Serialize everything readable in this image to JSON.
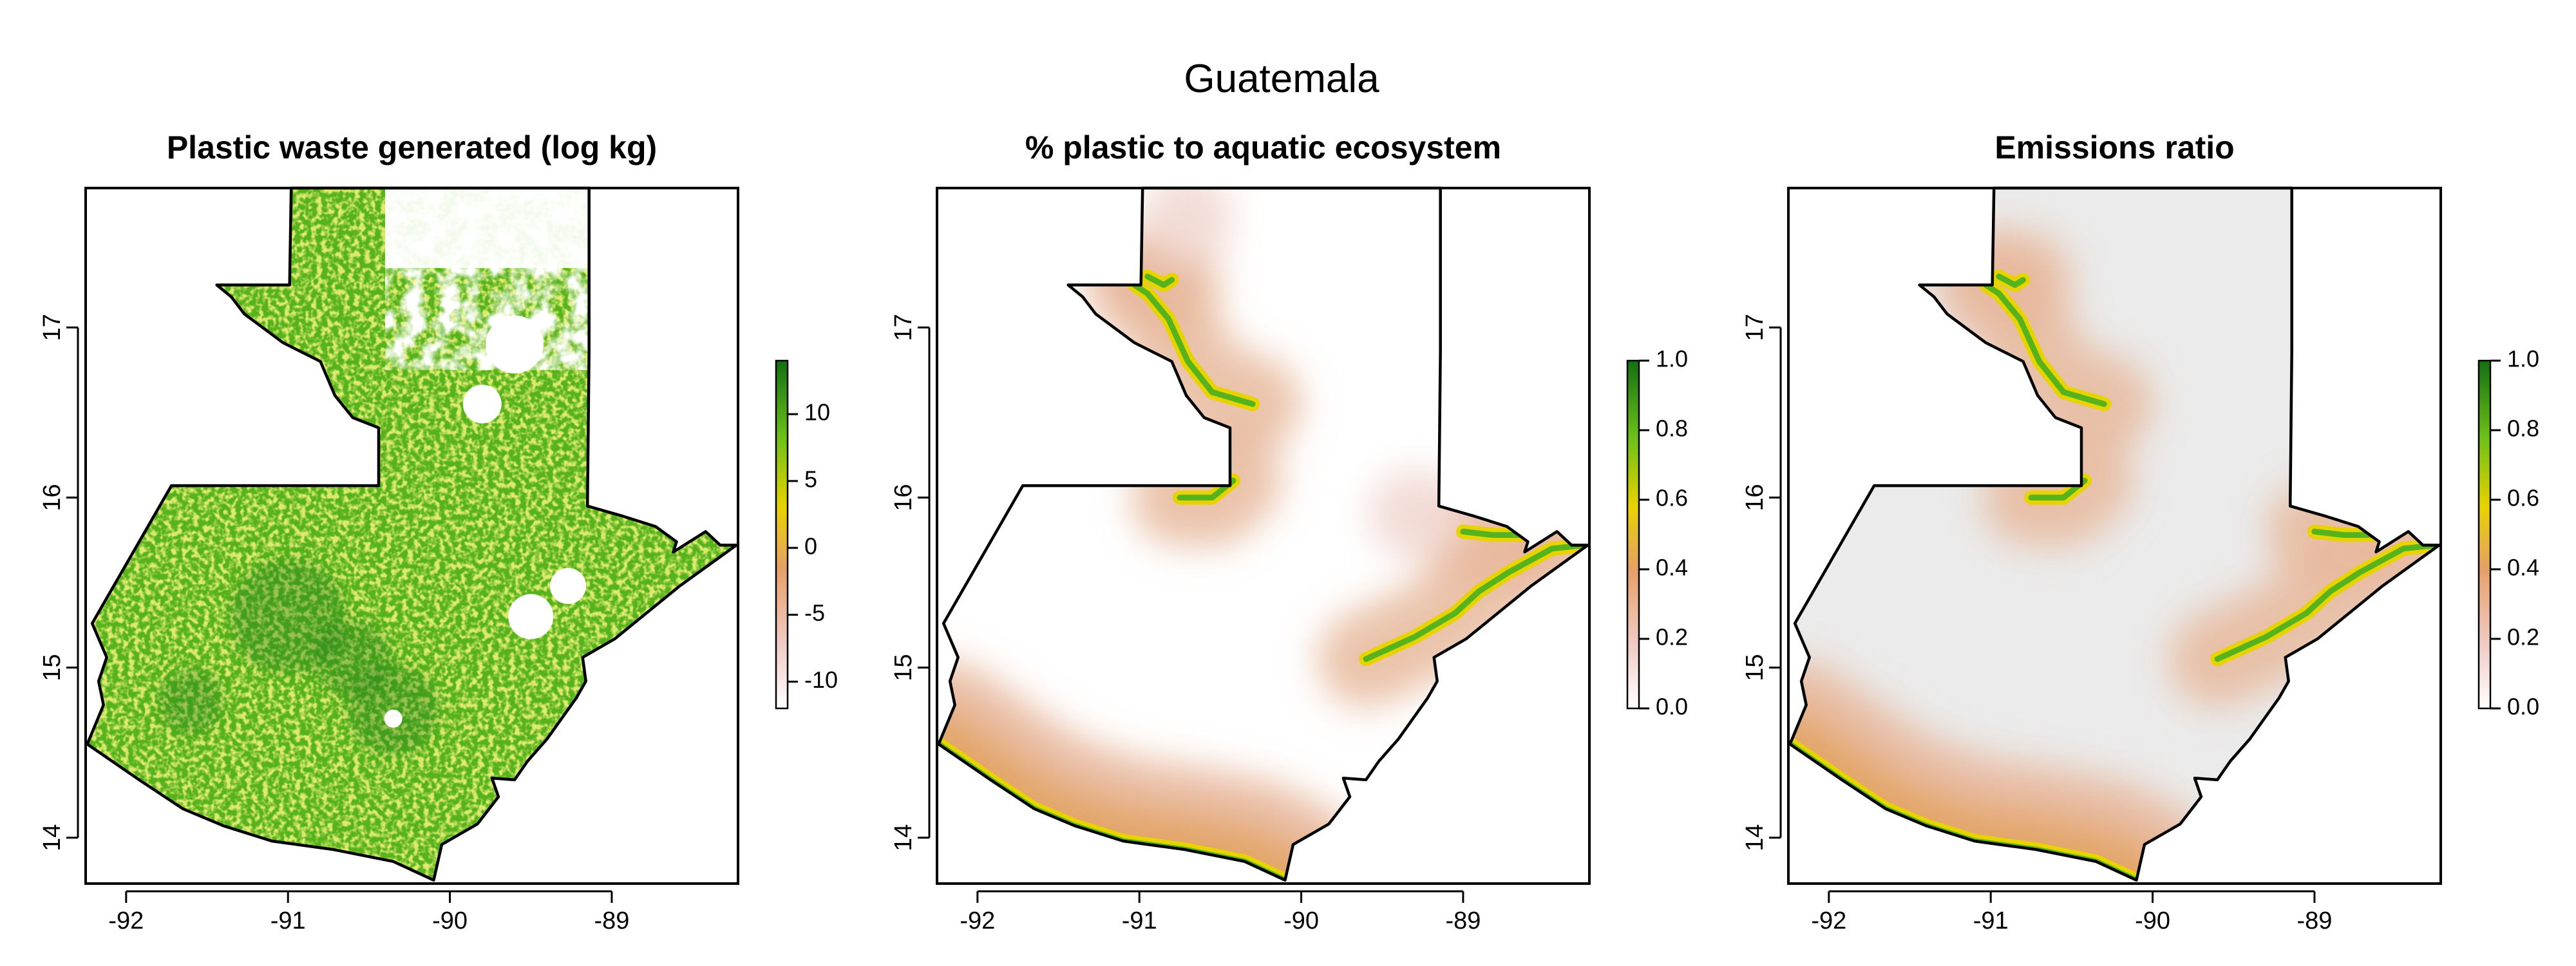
{
  "figure": {
    "title": "Guatemala"
  },
  "map_extent": {
    "lon": [
      -92.25,
      -88.22
    ],
    "lat": [
      13.73,
      17.82
    ]
  },
  "panels": [
    {
      "id": "waste",
      "title": "Plastic waste generated (log kg)",
      "colorbar": {
        "min": -12,
        "max": 14,
        "ticks": [
          "10",
          "5",
          "0",
          "-5",
          "-10"
        ],
        "tick_values": [
          10,
          5,
          0,
          -5,
          -10
        ]
      },
      "fill": "dense green raster covering most of the country"
    },
    {
      "id": "pct",
      "title": "% plastic to aquatic ecosystem",
      "colorbar": {
        "min": 0,
        "max": 1,
        "ticks": [
          "1.0",
          "0.8",
          "0.6",
          "0.4",
          "0.2",
          "0.0"
        ],
        "tick_values": [
          1,
          0.8,
          0.6,
          0.4,
          0.2,
          0
        ]
      },
      "fill": "pink-orange gradients near coasts and rivers, high values (green) along waterways"
    },
    {
      "id": "emis",
      "title": "Emissions ratio",
      "colorbar": {
        "min": 0,
        "max": 1,
        "ticks": [
          "1.0",
          "0.8",
          "0.6",
          "0.4",
          "0.2",
          "0.0"
        ],
        "tick_values": [
          1,
          0.8,
          0.6,
          0.4,
          0.2,
          0
        ]
      },
      "fill": "light grey interior, pink-orange gradients near coasts and rivers"
    }
  ],
  "axes": {
    "x_ticks": [
      "-92",
      "-91",
      "-90",
      "-89"
    ],
    "x_values": [
      -92,
      -91,
      -90,
      -89
    ],
    "y_ticks": [
      "14",
      "15",
      "16",
      "17"
    ],
    "y_values": [
      14,
      15,
      16,
      17
    ]
  },
  "colors": {
    "green_dark": "#1b7a1b",
    "green": "#57b31c",
    "yellow_green": "#b7d22a",
    "yellow": "#e6d300",
    "orange": "#e3a567",
    "salmon": "#e8b89c",
    "pink": "#f3dcd6",
    "grey_bg": "#ebebeb"
  }
}
